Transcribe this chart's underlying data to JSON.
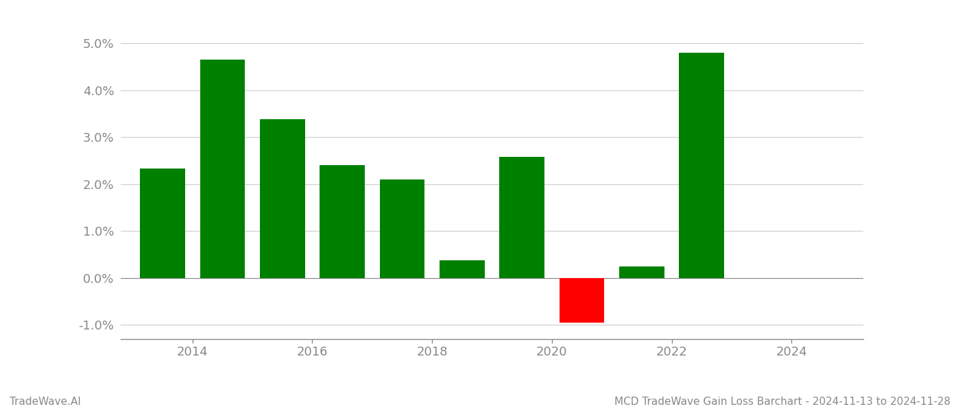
{
  "bar_positions": [
    2013.5,
    2014.5,
    2015.5,
    2016.5,
    2017.5,
    2018.5,
    2019.5,
    2020.5,
    2021.5,
    2022.5
  ],
  "values": [
    0.0233,
    0.0465,
    0.0338,
    0.024,
    0.021,
    0.0038,
    0.0258,
    -0.0095,
    0.0025,
    0.048
  ],
  "colors": [
    "#008000",
    "#008000",
    "#008000",
    "#008000",
    "#008000",
    "#008000",
    "#008000",
    "#ff0000",
    "#008000",
    "#008000"
  ],
  "xtick_positions": [
    2014,
    2016,
    2018,
    2020,
    2022,
    2024
  ],
  "xtick_labels": [
    "2014",
    "2016",
    "2018",
    "2020",
    "2022",
    "2024"
  ],
  "title": "MCD TradeWave Gain Loss Barchart - 2024-11-13 to 2024-11-28",
  "watermark": "TradeWave.AI",
  "xlim": [
    2012.8,
    2025.2
  ],
  "ylim": [
    -0.013,
    0.057
  ],
  "yticks": [
    -0.01,
    0.0,
    0.01,
    0.02,
    0.03,
    0.04,
    0.05
  ],
  "background_color": "#ffffff",
  "grid_color": "#cccccc",
  "bar_width": 0.75,
  "fig_width": 14.0,
  "fig_height": 6.0,
  "dpi": 100
}
